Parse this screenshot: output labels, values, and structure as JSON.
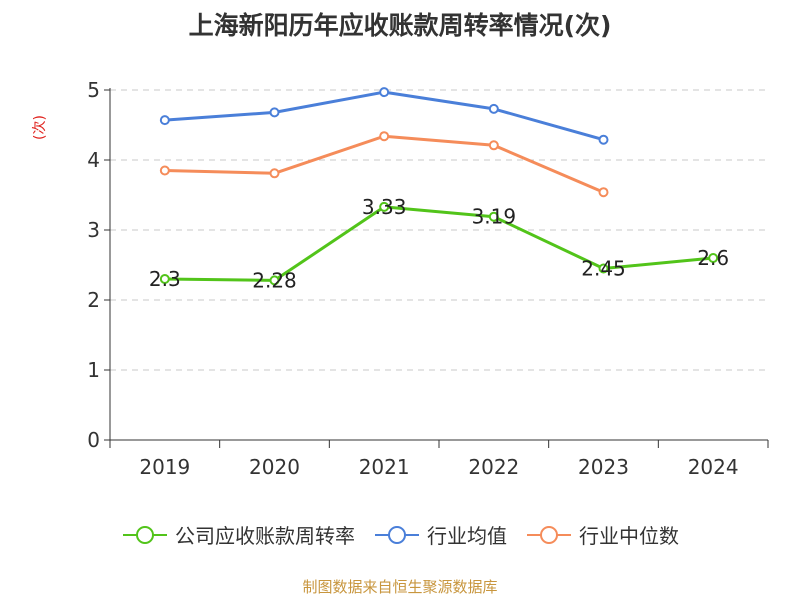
{
  "chart_data": {
    "type": "line",
    "title": "上海新阳历年应收账款周转率情况(次)",
    "ylabel": "(次)",
    "xlabel": "",
    "ylim": [
      0,
      5
    ],
    "yticks": [
      "0",
      "1",
      "2",
      "3",
      "4",
      "5"
    ],
    "categories": [
      "2019",
      "2020",
      "2021",
      "2022",
      "2023",
      "2024"
    ],
    "grid": true,
    "legend_position": "bottom",
    "series": [
      {
        "name": "公司应收账款周转率",
        "color": "#52c41a",
        "values": [
          2.3,
          2.28,
          3.33,
          3.19,
          2.45,
          2.6
        ],
        "labels": [
          "2.3",
          "2.28",
          "3.33",
          "3.19",
          "2.45",
          "2.6"
        ]
      },
      {
        "name": "行业均值",
        "color": "#4a7fd9",
        "values": [
          4.57,
          4.68,
          4.97,
          4.73,
          4.29,
          null
        ]
      },
      {
        "name": "行业中位数",
        "color": "#f58c5a",
        "values": [
          3.85,
          3.81,
          4.34,
          4.21,
          3.54,
          null
        ]
      }
    ]
  },
  "source": "制图数据来自恒生聚源数据库"
}
